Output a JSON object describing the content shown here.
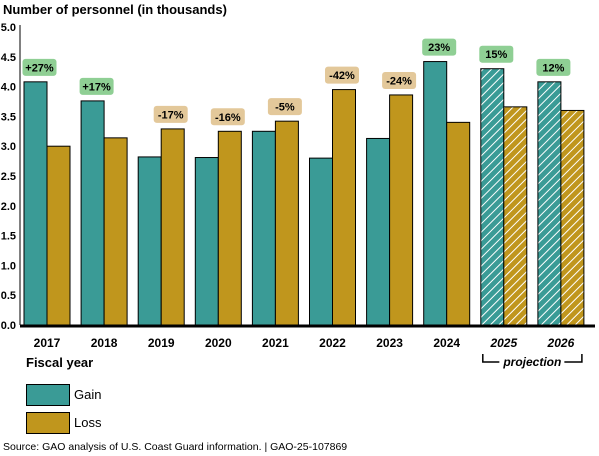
{
  "chart_data": {
    "type": "bar",
    "title": "Number of personnel (in thousands)",
    "xlabel": "Fiscal year",
    "ylabel": "",
    "ylim": [
      0,
      5
    ],
    "yticks": [
      "0.0",
      "0.5",
      "1.0",
      "1.5",
      "2.0",
      "2.5",
      "3.0",
      "3.5",
      "4.0",
      "4.5",
      "5.0"
    ],
    "categories": [
      "2017",
      "2018",
      "2019",
      "2020",
      "2021",
      "2022",
      "2023",
      "2024",
      "2025",
      "2026"
    ],
    "projected": [
      false,
      false,
      false,
      false,
      false,
      false,
      false,
      false,
      true,
      true
    ],
    "projection_label": "projection",
    "series": [
      {
        "name": "Gain",
        "values": [
          4.08,
          3.76,
          2.82,
          2.81,
          3.25,
          2.8,
          3.13,
          4.42,
          4.3,
          4.08
        ]
      },
      {
        "name": "Loss",
        "values": [
          3.0,
          3.14,
          3.29,
          3.25,
          3.42,
          3.95,
          3.86,
          3.4,
          3.66,
          3.6
        ]
      }
    ],
    "annotations": [
      "+27%",
      "+17%",
      "-17%",
      "-16%",
      "-5%",
      "-42%",
      "-24%",
      "23%",
      "15%",
      "12%"
    ],
    "annotation_series": [
      "Gain",
      "Gain",
      "Loss",
      "Loss",
      "Loss",
      "Loss",
      "Loss",
      "Gain",
      "Gain",
      "Gain"
    ],
    "colors": {
      "Gain": "#3a9b96",
      "Loss": "#c0961d",
      "gain_badge": "#8fcf94",
      "loss_badge": "#e3c89a"
    },
    "grid": false,
    "legend": "bottom-left"
  },
  "source_note": "Source: GAO analysis of U.S. Coast Guard information.  |  GAO-25-107869"
}
